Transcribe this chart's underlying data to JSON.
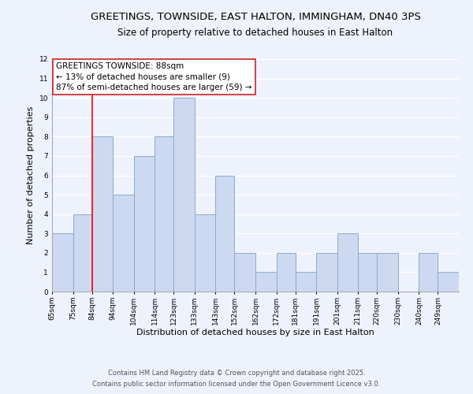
{
  "title": "GREETINGS, TOWNSIDE, EAST HALTON, IMMINGHAM, DN40 3PS",
  "subtitle": "Size of property relative to detached houses in East Halton",
  "xlabel": "Distribution of detached houses by size in East Halton",
  "ylabel": "Number of detached properties",
  "bar_color": "#ccd9f0",
  "bar_edge_color": "#8BAAD0",
  "background_color": "#eef2fc",
  "grid_color": "#ffffff",
  "vline_color": "#ff0000",
  "vline_x": 84,
  "annotation_title": "GREETINGS TOWNSIDE: 88sqm",
  "annotation_line1": "← 13% of detached houses are smaller (9)",
  "annotation_line2": "87% of semi-detached houses are larger (59) →",
  "bins": [
    65,
    75,
    84,
    94,
    104,
    114,
    123,
    133,
    143,
    152,
    162,
    172,
    181,
    191,
    201,
    211,
    220,
    230,
    240,
    249,
    259
  ],
  "counts": [
    3,
    4,
    8,
    5,
    7,
    8,
    10,
    4,
    6,
    2,
    1,
    2,
    1,
    2,
    3,
    2,
    2,
    0,
    2,
    1
  ],
  "ylim": [
    0,
    12
  ],
  "yticks": [
    0,
    1,
    2,
    3,
    4,
    5,
    6,
    7,
    8,
    9,
    10,
    11,
    12
  ],
  "tick_labels": [
    "65sqm",
    "75sqm",
    "84sqm",
    "94sqm",
    "104sqm",
    "114sqm",
    "123sqm",
    "133sqm",
    "143sqm",
    "152sqm",
    "162sqm",
    "172sqm",
    "181sqm",
    "191sqm",
    "201sqm",
    "211sqm",
    "220sqm",
    "230sqm",
    "240sqm",
    "249sqm"
  ],
  "footnote1": "Contains HM Land Registry data © Crown copyright and database right 2025.",
  "footnote2": "Contains public sector information licensed under the Open Government Licence v3.0.",
  "title_fontsize": 9.5,
  "subtitle_fontsize": 8.5,
  "label_fontsize": 8,
  "tick_fontsize": 6.5,
  "annotation_fontsize": 7.5,
  "footnote_fontsize": 6
}
